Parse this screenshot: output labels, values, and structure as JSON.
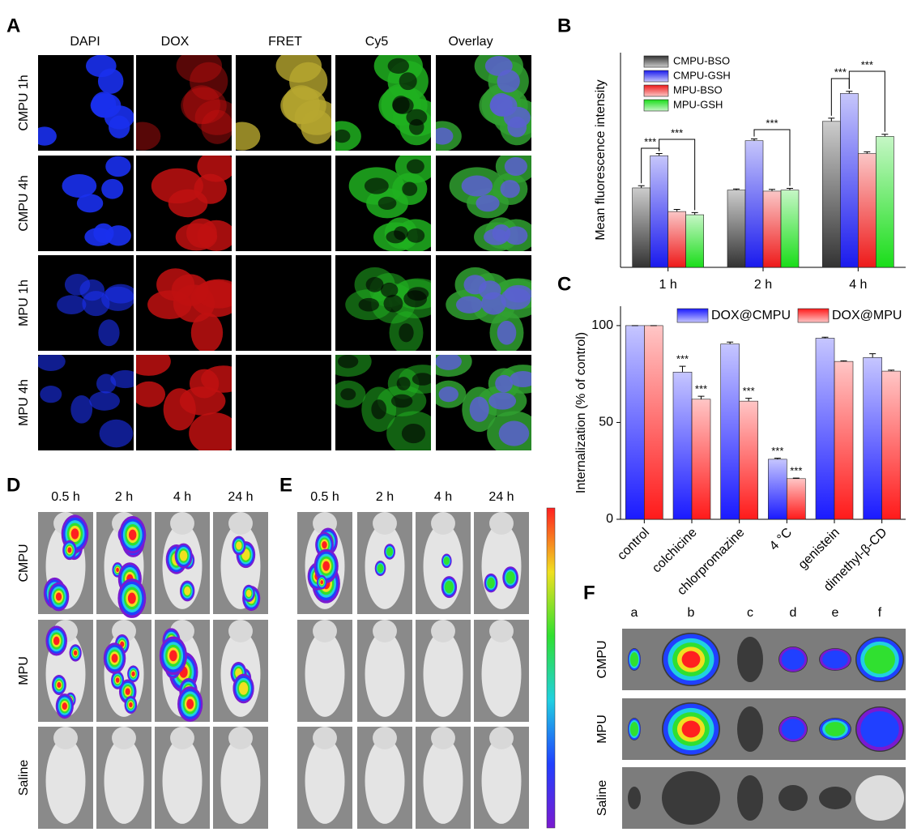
{
  "figure": {
    "panel_letters": [
      "A",
      "B",
      "C",
      "D",
      "E",
      "F"
    ],
    "a_columns": [
      "DAPI",
      "DOX",
      "FRET",
      "Cy5",
      "Overlay"
    ],
    "a_rows": [
      "CMPU 1h",
      "CMPU 4h",
      "MPU 1h",
      "MPU 4h"
    ],
    "d_columns": [
      "0.5 h",
      "2 h",
      "4 h",
      "24 h"
    ],
    "d_rows": [
      "CMPU",
      "MPU",
      "Saline"
    ],
    "e_columns": [
      "0.5 h",
      "2 h",
      "4 h",
      "24 h"
    ],
    "f_columns": [
      "a",
      "b",
      "c",
      "d",
      "e",
      "f"
    ],
    "f_rows": [
      "CMPU",
      "MPU",
      "Saline"
    ]
  },
  "chart_data": [
    {
      "type": "bar",
      "y_label": "Mean fluorescence intensity",
      "categories": [
        "1 h",
        "2 h",
        "4 h"
      ],
      "ylim": [
        0,
        100
      ],
      "series": [
        {
          "name": "CMPU-BSO",
          "color": "#333333",
          "values": [
            37,
            36,
            68
          ],
          "errors": [
            1,
            0.5,
            1.5
          ]
        },
        {
          "name": "CMPU-GSH",
          "color": "#1a1aee",
          "values": [
            52,
            59,
            81
          ],
          "errors": [
            1,
            0.8,
            1
          ]
        },
        {
          "name": "MPU-BSO",
          "color": "#ee1a1a",
          "values": [
            26,
            35.5,
            53
          ],
          "errors": [
            1,
            0.8,
            0.8
          ]
        },
        {
          "name": "MPU-GSH",
          "color": "#1add1a",
          "values": [
            24.5,
            36,
            61
          ],
          "errors": [
            1,
            0.8,
            1
          ]
        }
      ],
      "brackets": [
        "***",
        "***",
        "***",
        "***",
        "***"
      ]
    },
    {
      "type": "bar",
      "y_label": "Internalization (% of control)",
      "categories": [
        "control",
        "colchicine",
        "chlorpromazine",
        "4 °C",
        "genistein",
        "dimethyl-β-CD"
      ],
      "ylim": [
        0,
        110
      ],
      "yticks": [
        0,
        50,
        100
      ],
      "series": [
        {
          "name": "DOX@CMPU",
          "color": "#1a1aff",
          "values": [
            100,
            76,
            90.5,
            31,
            93.5,
            83.5
          ],
          "errors": [
            0,
            3,
            1,
            0.5,
            0.5,
            2
          ],
          "marks": [
            null,
            "***",
            null,
            "***",
            null,
            null
          ]
        },
        {
          "name": "DOX@MPU",
          "color": "#ff1a1a",
          "values": [
            100,
            62,
            61,
            21,
            81.5,
            76.5
          ],
          "errors": [
            0,
            1.5,
            1.5,
            0.3,
            0.3,
            0.5
          ],
          "marks": [
            null,
            "***",
            "***",
            "***",
            null,
            null
          ]
        }
      ]
    }
  ]
}
